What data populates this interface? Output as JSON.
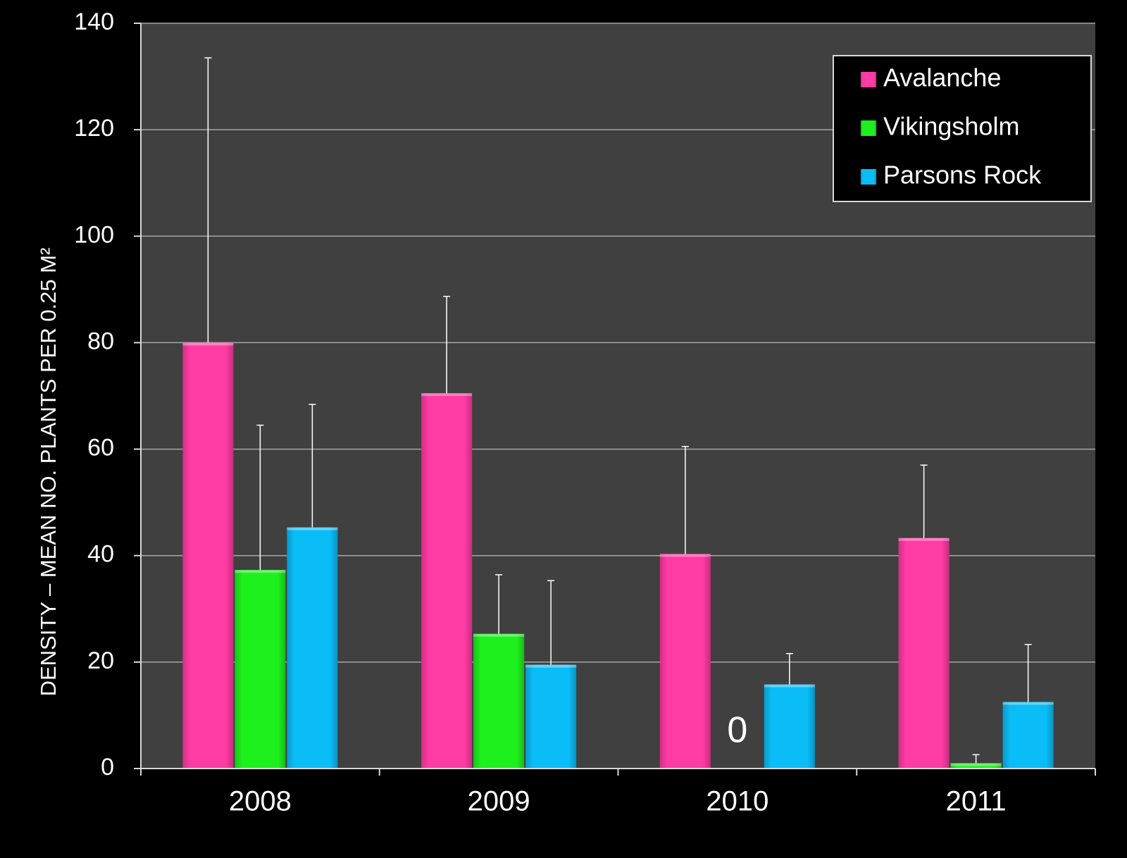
{
  "chart_data": {
    "type": "bar",
    "title": "",
    "xlabel": "",
    "ylabel": "DENSITY – MEAN NO. PLANTS PER 0.25 M²",
    "categories": [
      "2008",
      "2009",
      "2010",
      "2011"
    ],
    "ylim": [
      0,
      140
    ],
    "yticks": [
      0,
      20,
      40,
      60,
      80,
      100,
      120,
      140
    ],
    "grid": true,
    "legend_position": "top-right",
    "series": [
      {
        "name": "Avalanche",
        "color": "#ff3ba4",
        "values": [
          80,
          70.5,
          40.3,
          43.3
        ],
        "error": [
          53.5,
          18.2,
          20.2,
          13.7
        ]
      },
      {
        "name": "Vikingsholm",
        "color": "#1ef01e",
        "values": [
          37.3,
          25.3,
          0,
          1
        ],
        "error": [
          27.2,
          11.1,
          0,
          1.6
        ]
      },
      {
        "name": "Parsons Rock",
        "color": "#0bbdf7",
        "values": [
          45.3,
          19.5,
          15.8,
          12.5
        ],
        "error": [
          23.1,
          15.8,
          5.8,
          10.8
        ]
      }
    ],
    "annotations": [
      {
        "category": "2010",
        "series": "Vikingsholm",
        "text": "0"
      }
    ]
  }
}
